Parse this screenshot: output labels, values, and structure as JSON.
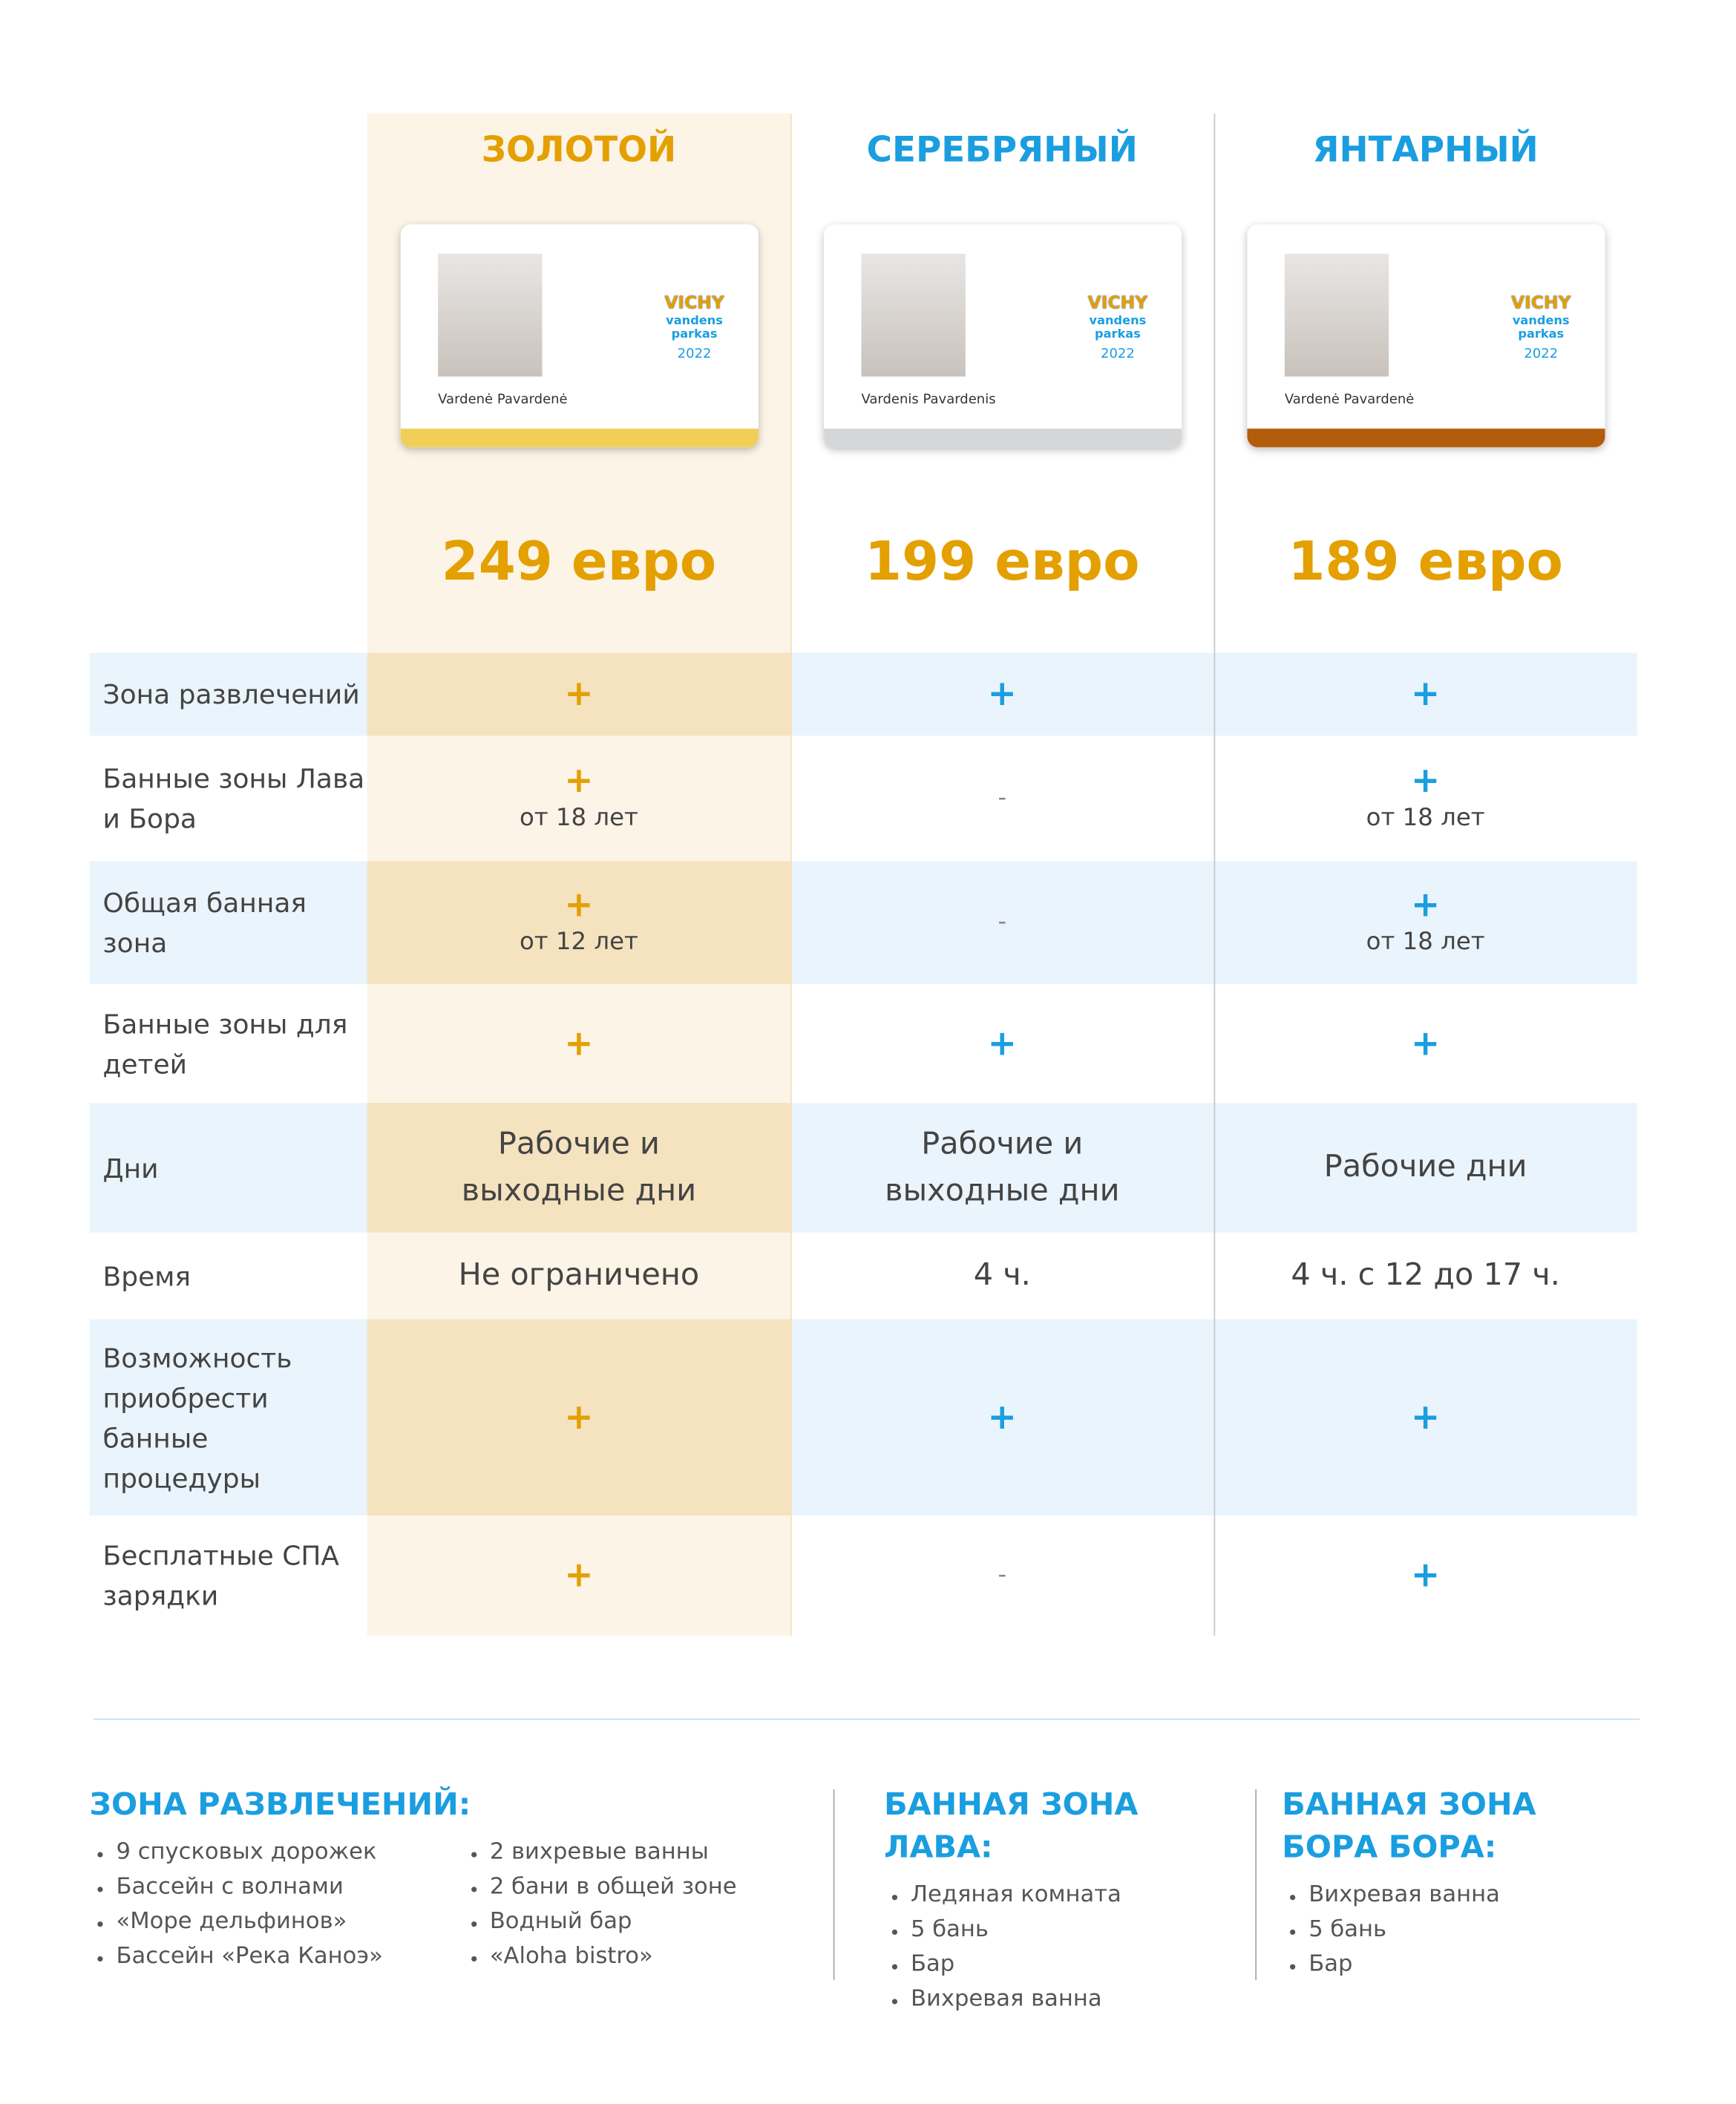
{
  "columns": [
    {
      "title": "ЗОЛОТОЙ",
      "price": "249 евро",
      "card": {
        "name": "Vardenė Pavardenė",
        "brand": "VICHY",
        "brand_sub": "vandens parkas",
        "year": "2022"
      }
    },
    {
      "title": "СЕРЕБРЯНЫЙ",
      "price": "199 евро",
      "card": {
        "name": "Vardenis Pavardenis",
        "brand": "VICHY",
        "brand_sub": "vandens parkas",
        "year": "2022"
      }
    },
    {
      "title": "ЯНТАРНЫЙ",
      "price": "189 евро",
      "card": {
        "name": "Vardenė Pavardenė",
        "brand": "VICHY",
        "brand_sub": "vandens parkas",
        "year": "2022"
      }
    }
  ],
  "rows": [
    {
      "label": "Зона развлечений",
      "cells": [
        {
          "mark": "+"
        },
        {
          "mark": "+"
        },
        {
          "mark": "+"
        }
      ]
    },
    {
      "label": "Банные зоны Лава и Бора",
      "cells": [
        {
          "mark": "+",
          "note": "от 18 лет"
        },
        {
          "mark": "-"
        },
        {
          "mark": "+",
          "note": "от 18 лет"
        }
      ]
    },
    {
      "label": "Общая банная зона",
      "cells": [
        {
          "mark": "+",
          "note": "от 12 лет"
        },
        {
          "mark": "-"
        },
        {
          "mark": "+",
          "note": "от 18 лет"
        }
      ]
    },
    {
      "label": "Банные зоны для детей",
      "cells": [
        {
          "mark": "+"
        },
        {
          "mark": "+"
        },
        {
          "mark": "+"
        }
      ]
    },
    {
      "label": "Дни",
      "cells": [
        {
          "text": "Рабочие и выходные дни"
        },
        {
          "text": "Рабочие и выходные дни"
        },
        {
          "text": "Рабочие дни"
        }
      ]
    },
    {
      "label": "Время",
      "cells": [
        {
          "text": "Не ограничено"
        },
        {
          "text": "4 ч."
        },
        {
          "text": "4 ч. с 12 до 17 ч."
        }
      ]
    },
    {
      "label": "Возможность приобрести банные процедуры",
      "cells": [
        {
          "mark": "+"
        },
        {
          "mark": "+"
        },
        {
          "mark": "+"
        }
      ]
    },
    {
      "label": "Бесплатные СПА зарядки",
      "cells": [
        {
          "mark": "+"
        },
        {
          "mark": "-"
        },
        {
          "mark": "+"
        }
      ]
    }
  ],
  "sections": [
    {
      "title": "ЗОНА РАЗВЛЕЧЕНИЙ:",
      "lists": [
        [
          "9 спусковых дорожек",
          "Бассейн с волнами",
          "«Море дельфинов»",
          "Бассейн «Река Каноэ»"
        ],
        [
          "2 вихревые ванны",
          "2 бани в общей зоне",
          "Водный бар",
          "«Aloha bistro»"
        ]
      ]
    },
    {
      "title": "БАННАЯ ЗОНА ЛАВА:",
      "lists": [
        [
          "Ледяная комната",
          "5 бань",
          "Бар",
          "Вихревая ванна"
        ]
      ]
    },
    {
      "title": "БАННАЯ ЗОНА БОРА БОРА:",
      "lists": [
        [
          "Вихревая ванна",
          "5 бань",
          "Бар"
        ]
      ]
    }
  ]
}
